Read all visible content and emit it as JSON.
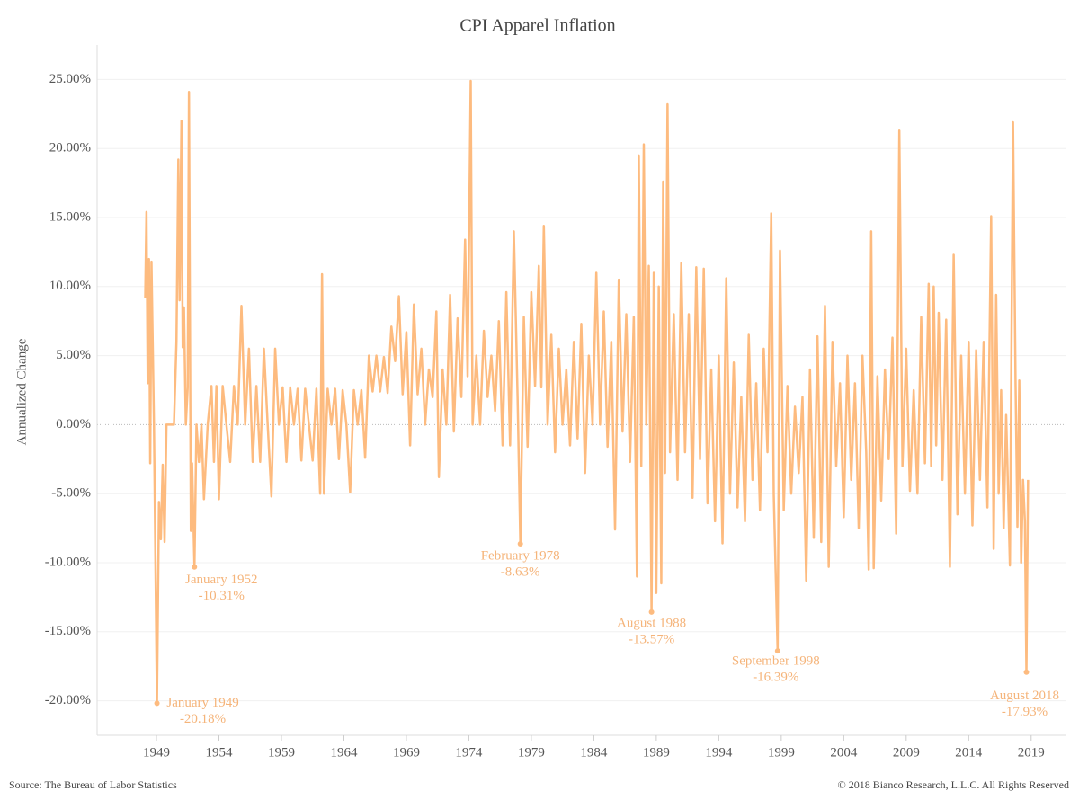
{
  "chart_data": {
    "type": "line",
    "title": "CPI Apparel Inflation",
    "y_label": "Annualized Change",
    "source": "Source: The Bureau of Labor Statistics",
    "copyright": "© 2018 Bianco Research, L.L.C. All Rights Reserved",
    "color": "#fdbb7f",
    "grid": true,
    "xlim": [
      1944.25,
      2021.75
    ],
    "xticks": [
      1949,
      1954,
      1959,
      1964,
      1969,
      1974,
      1979,
      1984,
      1989,
      1994,
      1999,
      2004,
      2009,
      2014,
      2019
    ],
    "ylim": [
      -22.5,
      27.5
    ],
    "yticks": [
      {
        "value": -20,
        "label": "-20.00%"
      },
      {
        "value": -15,
        "label": "-15.00%"
      },
      {
        "value": -10,
        "label": "-10.00%"
      },
      {
        "value": -5,
        "label": "-5.00%"
      },
      {
        "value": 0,
        "label": "0.00%"
      },
      {
        "value": 5,
        "label": "5.00%"
      },
      {
        "value": 10,
        "label": "10.00%"
      },
      {
        "value": 15,
        "label": "15.00%"
      },
      {
        "value": 20,
        "label": "20.00%"
      },
      {
        "value": 25,
        "label": "25.00%"
      }
    ],
    "x": [
      1948.1,
      1948.2,
      1948.3,
      1948.4,
      1948.5,
      1948.6,
      1948.8,
      1949.04,
      1949.2,
      1949.35,
      1949.5,
      1949.65,
      1949.8,
      1950.1,
      1950.4,
      1950.6,
      1950.75,
      1950.85,
      1951.0,
      1951.1,
      1951.2,
      1951.35,
      1951.5,
      1951.6,
      1951.75,
      1951.85,
      1952.04,
      1952.2,
      1952.4,
      1952.6,
      1952.8,
      1953.1,
      1953.4,
      1953.6,
      1953.8,
      1954.0,
      1954.3,
      1954.6,
      1954.9,
      1955.2,
      1955.5,
      1955.8,
      1956.1,
      1956.4,
      1956.7,
      1957.0,
      1957.3,
      1957.6,
      1957.9,
      1958.2,
      1958.5,
      1958.8,
      1959.1,
      1959.4,
      1959.7,
      1960.0,
      1960.3,
      1960.6,
      1960.9,
      1961.2,
      1961.5,
      1961.8,
      1962.1,
      1962.25,
      1962.4,
      1962.7,
      1963.0,
      1963.3,
      1963.6,
      1963.9,
      1964.2,
      1964.5,
      1964.8,
      1965.1,
      1965.4,
      1965.7,
      1966.0,
      1966.3,
      1966.6,
      1966.9,
      1967.2,
      1967.5,
      1967.8,
      1968.1,
      1968.4,
      1968.7,
      1969.0,
      1969.3,
      1969.6,
      1969.9,
      1970.2,
      1970.5,
      1970.8,
      1971.1,
      1971.4,
      1971.6,
      1971.9,
      1972.2,
      1972.5,
      1972.8,
      1973.1,
      1973.4,
      1973.7,
      1973.9,
      1974.15,
      1974.3,
      1974.6,
      1974.9,
      1975.2,
      1975.5,
      1975.8,
      1976.1,
      1976.4,
      1976.7,
      1977.0,
      1977.3,
      1977.6,
      1977.9,
      1978.12,
      1978.4,
      1978.7,
      1979.0,
      1979.3,
      1979.6,
      1979.8,
      1980.0,
      1980.3,
      1980.6,
      1980.9,
      1981.2,
      1981.5,
      1981.8,
      1982.1,
      1982.4,
      1982.7,
      1983.0,
      1983.3,
      1983.6,
      1983.9,
      1984.2,
      1984.5,
      1984.8,
      1985.1,
      1985.4,
      1985.7,
      1986.0,
      1986.3,
      1986.6,
      1986.9,
      1987.2,
      1987.45,
      1987.6,
      1987.8,
      1988.0,
      1988.2,
      1988.4,
      1988.62,
      1988.8,
      1989.0,
      1989.2,
      1989.4,
      1989.55,
      1989.7,
      1989.9,
      1990.1,
      1990.4,
      1990.7,
      1991.0,
      1991.3,
      1991.6,
      1991.9,
      1992.2,
      1992.5,
      1992.8,
      1993.1,
      1993.4,
      1993.7,
      1994.0,
      1994.3,
      1994.6,
      1994.9,
      1995.2,
      1995.5,
      1995.8,
      1996.1,
      1996.4,
      1996.7,
      1997.0,
      1997.3,
      1997.6,
      1997.9,
      1998.2,
      1998.4,
      1998.71,
      1998.9,
      1999.2,
      1999.5,
      1999.8,
      2000.1,
      2000.4,
      2000.7,
      2001.0,
      2001.3,
      2001.6,
      2001.9,
      2002.2,
      2002.5,
      2002.8,
      2003.1,
      2003.4,
      2003.7,
      2004.0,
      2004.3,
      2004.6,
      2004.9,
      2005.2,
      2005.5,
      2005.8,
      2006.0,
      2006.2,
      2006.4,
      2006.7,
      2007.0,
      2007.3,
      2007.6,
      2007.9,
      2008.2,
      2008.45,
      2008.7,
      2009.0,
      2009.3,
      2009.6,
      2009.9,
      2010.2,
      2010.5,
      2010.8,
      2011.0,
      2011.2,
      2011.4,
      2011.6,
      2011.9,
      2012.2,
      2012.5,
      2012.8,
      2013.1,
      2013.4,
      2013.7,
      2014.0,
      2014.3,
      2014.6,
      2014.9,
      2015.2,
      2015.5,
      2015.8,
      2016.0,
      2016.2,
      2016.4,
      2016.6,
      2016.8,
      2017.0,
      2017.3,
      2017.55,
      2017.75,
      2017.9,
      2018.05,
      2018.2,
      2018.35,
      2018.5,
      2018.62,
      2018.75
    ],
    "values": [
      9.2,
      15.4,
      3,
      12,
      -2.8,
      11.8,
      0,
      -20.18,
      -5.6,
      -8.3,
      -2.9,
      -8.5,
      0,
      0,
      0,
      6,
      19.2,
      9,
      22,
      5.6,
      8.5,
      0,
      2.7,
      24.1,
      -7.7,
      -2.8,
      -10.31,
      0,
      -2.7,
      0,
      -5.4,
      0,
      2.8,
      -2.7,
      2.8,
      -5.4,
      2.8,
      0,
      -2.7,
      2.8,
      0,
      8.6,
      0,
      5.5,
      -2.7,
      2.8,
      -2.7,
      5.5,
      0,
      -5.2,
      5.5,
      0,
      2.7,
      -2.7,
      2.7,
      0,
      2.6,
      -2.6,
      2.6,
      0,
      -2.6,
      2.6,
      -5,
      10.9,
      -5,
      2.6,
      0,
      2.6,
      -2.5,
      2.5,
      0,
      -4.9,
      2.5,
      0,
      2.5,
      -2.4,
      5,
      2.4,
      5,
      2.4,
      4.9,
      2.3,
      7.1,
      4.6,
      9.3,
      2.2,
      6.7,
      -1.5,
      8.7,
      2.2,
      5.5,
      0,
      4,
      2,
      8.2,
      -3.8,
      4,
      0,
      9.4,
      -0.5,
      7.7,
      2,
      13.4,
      3.5,
      24.9,
      0,
      5,
      0,
      6.8,
      2,
      5,
      1,
      7.5,
      -1.5,
      9.6,
      -1.5,
      14,
      2,
      -8.63,
      7.8,
      -1.6,
      9.6,
      2.8,
      11.5,
      2.7,
      14.4,
      0,
      6.5,
      -2,
      5.5,
      0,
      4,
      -1.5,
      6,
      -1,
      7.3,
      -3.5,
      5,
      0,
      11,
      0,
      8.2,
      -1.6,
      6,
      -7.6,
      10.5,
      -0.5,
      8,
      -2.7,
      7.8,
      -11,
      19.5,
      -3,
      20.3,
      0,
      11.5,
      -13.57,
      11,
      -12.2,
      10,
      -11.5,
      17.6,
      -3.5,
      23.2,
      -2,
      8,
      -4,
      11.7,
      -2,
      8,
      -5.3,
      11.4,
      -2.5,
      11.3,
      -5.7,
      4,
      -7,
      5,
      -8.6,
      10.6,
      -5,
      4.5,
      -6,
      2,
      -7,
      6.5,
      -4,
      3,
      -6.2,
      5.5,
      -2,
      15.3,
      -5,
      -16.39,
      12.6,
      -6.2,
      2.8,
      -5,
      1.3,
      -3.5,
      2,
      -11.3,
      4,
      -8.2,
      6.4,
      -8.5,
      8.6,
      -10.3,
      6,
      -3,
      3,
      -6.7,
      5,
      -4,
      3,
      -7.5,
      5,
      -2,
      -10.5,
      14,
      -10.4,
      3.5,
      -5.5,
      4,
      -2.5,
      6.3,
      -7.9,
      21.3,
      -3,
      5.5,
      -4.8,
      2.5,
      -5,
      7.8,
      -2.8,
      10.2,
      -3,
      10,
      -1.5,
      8.1,
      -4,
      7.6,
      -10.3,
      12.3,
      -6.5,
      5,
      -5,
      6,
      -7.3,
      5.4,
      -4,
      6,
      -6,
      15.1,
      -9,
      9.4,
      -5,
      2.5,
      -7.5,
      0.7,
      -10.2,
      21.9,
      3.2,
      -7.4,
      3.2,
      -10,
      -4,
      -7,
      -17.93,
      -4
    ],
    "annotations": [
      {
        "text": "January 1949",
        "value_label": "-20.18%",
        "x": 1949.04,
        "y": -20.18
      },
      {
        "text": "January 1952",
        "value_label": "-10.31%",
        "x": 1952.04,
        "y": -10.31
      },
      {
        "text": "February 1978",
        "value_label": "-8.63%",
        "x": 1978.12,
        "y": -8.63
      },
      {
        "text": "August 1988",
        "value_label": "-13.57%",
        "x": 1988.62,
        "y": -13.57
      },
      {
        "text": "September 1998",
        "value_label": "-16.39%",
        "x": 1998.71,
        "y": -16.39
      },
      {
        "text": "August 2018",
        "value_label": "-17.93%",
        "x": 2018.62,
        "y": -17.93
      }
    ]
  }
}
